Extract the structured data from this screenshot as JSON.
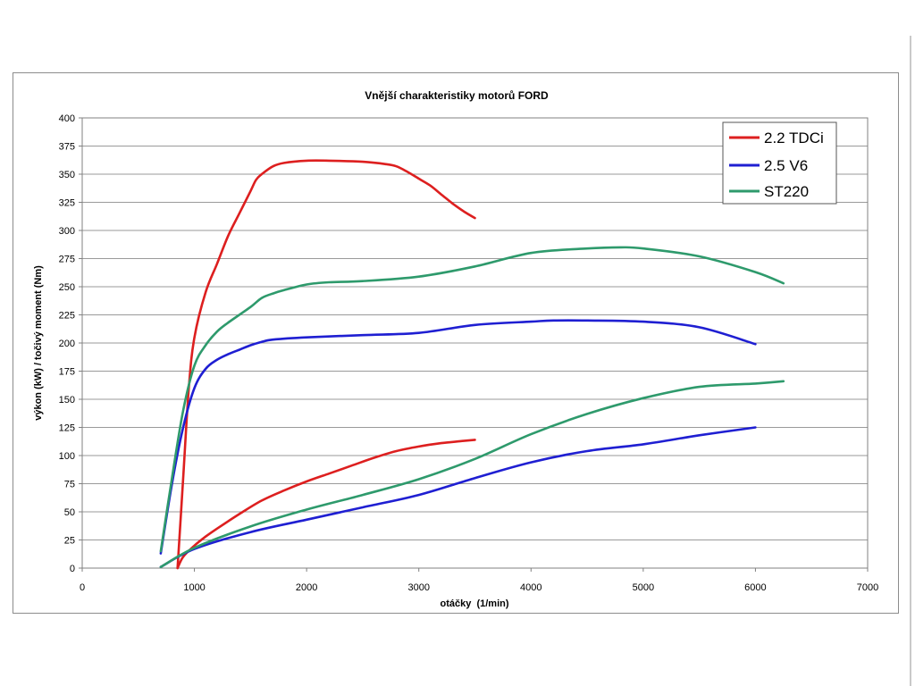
{
  "chart_data": {
    "type": "line",
    "title": "Vnější charakteristiky motorů FORD",
    "xlabel": "otáčky  (1/min)",
    "ylabel": "výkon (kW) / točivý moment (Nm)",
    "xlim": [
      0,
      7000
    ],
    "ylim": [
      0,
      400
    ],
    "xticks": [
      0,
      1000,
      2000,
      3000,
      4000,
      5000,
      6000,
      7000
    ],
    "yticks": [
      0,
      25,
      50,
      75,
      100,
      125,
      150,
      175,
      200,
      225,
      250,
      275,
      300,
      325,
      350,
      375,
      400
    ],
    "grid": "horizontal",
    "legend_position": "top-right",
    "colors": {
      "2.2 TDCi": "#dd1f1f",
      "2.5 V6": "#1f1fd2",
      "ST220": "#2e9a6c"
    },
    "legend": [
      "2.2 TDCi",
      "2.5 V6",
      "ST220"
    ],
    "series": [
      {
        "name": "2.2 TDCi",
        "kind": "torque",
        "x": [
          850,
          900,
          950,
          1000,
          1100,
          1200,
          1300,
          1400,
          1500,
          1550,
          1600,
          1700,
          1800,
          2000,
          2200,
          2500,
          2700,
          2800,
          2900,
          3000,
          3100,
          3200,
          3300,
          3400,
          3500
        ],
        "y": [
          0,
          80,
          160,
          205,
          245,
          270,
          295,
          315,
          335,
          345,
          350,
          357,
          360,
          362,
          362,
          361,
          359,
          357,
          352,
          346,
          340,
          332,
          324,
          317,
          311
        ]
      },
      {
        "name": "2.2 TDCi",
        "kind": "power",
        "x": [
          850,
          900,
          1000,
          1100,
          1200,
          1400,
          1600,
          1800,
          2000,
          2200,
          2400,
          2600,
          2800,
          3000,
          3200,
          3400,
          3500
        ],
        "y": [
          0,
          10,
          20,
          28,
          35,
          48,
          60,
          69,
          77,
          84,
          91,
          98,
          104,
          108,
          111,
          113,
          114
        ]
      },
      {
        "name": "2.5 V6",
        "kind": "torque",
        "x": [
          700,
          800,
          900,
          1000,
          1100,
          1200,
          1300,
          1400,
          1500,
          1600,
          1700,
          2000,
          2500,
          3000,
          3500,
          4000,
          4200,
          4500,
          5000,
          5500,
          6000
        ],
        "y": [
          13,
          75,
          125,
          160,
          177,
          185,
          190,
          194,
          198,
          201,
          203,
          205,
          207,
          209,
          216,
          219,
          220,
          220,
          219,
          214,
          199
        ]
      },
      {
        "name": "2.5 V6",
        "kind": "power",
        "x": [
          700,
          1000,
          1500,
          2000,
          2500,
          3000,
          3500,
          4000,
          4500,
          5000,
          5500,
          6000
        ],
        "y": [
          1,
          17,
          32,
          43,
          54,
          65,
          80,
          94,
          104,
          110,
          118,
          125
        ]
      },
      {
        "name": "ST220",
        "kind": "torque",
        "x": [
          700,
          800,
          900,
          1000,
          1100,
          1200,
          1300,
          1500,
          1600,
          1700,
          1800,
          2000,
          2200,
          2500,
          3000,
          3500,
          4000,
          4500,
          4800,
          5000,
          5500,
          6000,
          6250
        ],
        "y": [
          15,
          80,
          140,
          180,
          198,
          210,
          218,
          232,
          240,
          244,
          247,
          252,
          254,
          255,
          259,
          268,
          280,
          284,
          285,
          284,
          277,
          263,
          253
        ]
      },
      {
        "name": "ST220",
        "kind": "power",
        "x": [
          700,
          1000,
          1500,
          2000,
          2500,
          3000,
          3500,
          4000,
          4500,
          5000,
          5500,
          6000,
          6250
        ],
        "y": [
          1,
          18,
          37,
          52,
          65,
          79,
          97,
          119,
          137,
          151,
          161,
          164,
          166
        ]
      }
    ]
  }
}
